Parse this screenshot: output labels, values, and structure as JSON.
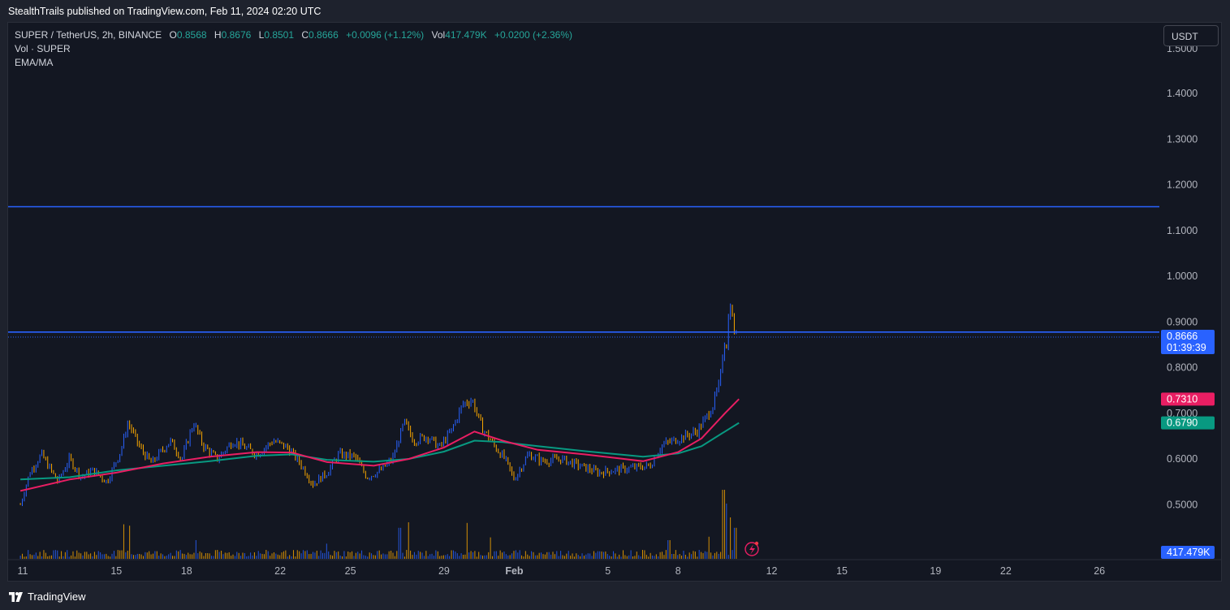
{
  "header": {
    "publish_text": "StealthTrails published on TradingView.com, Feb 11, 2024 02:20 UTC"
  },
  "legend": {
    "symbol": "SUPER / TetherUS, 2h, BINANCE",
    "o_label": "O",
    "o_value": "0.8568",
    "h_label": "H",
    "h_value": "0.8676",
    "l_label": "L",
    "l_value": "0.8501",
    "c_label": "C",
    "c_value": "0.8666",
    "change": "+0.0096 (+1.12%)",
    "vol_label": "Vol",
    "vol_value": "417.479K",
    "vol_change": "+0.0200 (+2.36%)",
    "vol_indicator": "Vol · SUPER",
    "ema_indicator": "EMA/MA"
  },
  "currency_button": "USDT",
  "footer": {
    "brand": "TradingView"
  },
  "colors": {
    "up": "#2962ff",
    "down": "#f7a600",
    "ema_fast": "#e91e63",
    "ema_slow": "#089981",
    "hline": "#2962ff",
    "label_last": "#2962ff"
  },
  "chart_data": {
    "type": "candlestick",
    "symbol": "SUPER / TetherUS",
    "interval": "2h",
    "exchange": "BINANCE",
    "y_axis_ticks": [
      "1.4000",
      "1.3000",
      "1.2000",
      "1.1000",
      "1.0000",
      "0.9000",
      "0.8000",
      "0.7000",
      "0.6000",
      "0.5000"
    ],
    "y_axis_top_partial": "1.5000",
    "ylim": [
      0.43,
      1.52
    ],
    "x_axis_ticks": [
      {
        "label": "11",
        "day": 11
      },
      {
        "label": "15",
        "day": 15
      },
      {
        "label": "18",
        "day": 18
      },
      {
        "label": "22",
        "day": 22
      },
      {
        "label": "25",
        "day": 25
      },
      {
        "label": "29",
        "day": 29
      },
      {
        "label": "Feb",
        "day": 32
      },
      {
        "label": "5",
        "day": 36
      },
      {
        "label": "8",
        "day": 39
      },
      {
        "label": "12",
        "day": 43
      },
      {
        "label": "15",
        "day": 46
      },
      {
        "label": "19",
        "day": 50
      },
      {
        "label": "22",
        "day": 53
      },
      {
        "label": "26",
        "day": 57
      }
    ],
    "horizontal_lines": [
      1.152,
      0.8776
    ],
    "last_price": {
      "value": "0.8666",
      "countdown": "01:39:39"
    },
    "ema_labels": {
      "fast": "0.7310",
      "slow": "0.6790"
    },
    "volume_last": "417.479K",
    "price_path": [
      {
        "day": 10.9,
        "price": 0.5
      },
      {
        "day": 11.3,
        "price": 0.57
      },
      {
        "day": 11.8,
        "price": 0.61
      },
      {
        "day": 12.5,
        "price": 0.55
      },
      {
        "day": 13.0,
        "price": 0.6
      },
      {
        "day": 13.5,
        "price": 0.56
      },
      {
        "day": 14.0,
        "price": 0.575
      },
      {
        "day": 14.6,
        "price": 0.55
      },
      {
        "day": 15.2,
        "price": 0.62
      },
      {
        "day": 15.5,
        "price": 0.68
      },
      {
        "day": 16.0,
        "price": 0.625
      },
      {
        "day": 16.5,
        "price": 0.59
      },
      {
        "day": 17.3,
        "price": 0.64
      },
      {
        "day": 17.8,
        "price": 0.6
      },
      {
        "day": 18.3,
        "price": 0.68
      },
      {
        "day": 18.7,
        "price": 0.63
      },
      {
        "day": 19.3,
        "price": 0.6
      },
      {
        "day": 20.0,
        "price": 0.64
      },
      {
        "day": 21.0,
        "price": 0.61
      },
      {
        "day": 21.7,
        "price": 0.64
      },
      {
        "day": 22.3,
        "price": 0.625
      },
      {
        "day": 22.8,
        "price": 0.595
      },
      {
        "day": 23.4,
        "price": 0.545
      },
      {
        "day": 24.0,
        "price": 0.57
      },
      {
        "day": 24.5,
        "price": 0.61
      },
      {
        "day": 25.2,
        "price": 0.605
      },
      {
        "day": 25.7,
        "price": 0.56
      },
      {
        "day": 26.3,
        "price": 0.575
      },
      {
        "day": 26.8,
        "price": 0.6
      },
      {
        "day": 27.3,
        "price": 0.68
      },
      {
        "day": 27.7,
        "price": 0.64
      },
      {
        "day": 28.3,
        "price": 0.65
      },
      {
        "day": 28.8,
        "price": 0.625
      },
      {
        "day": 29.3,
        "price": 0.66
      },
      {
        "day": 29.8,
        "price": 0.72
      },
      {
        "day": 30.2,
        "price": 0.73
      },
      {
        "day": 30.6,
        "price": 0.67
      },
      {
        "day": 31.2,
        "price": 0.625
      },
      {
        "day": 31.6,
        "price": 0.6
      },
      {
        "day": 32.0,
        "price": 0.555
      },
      {
        "day": 32.6,
        "price": 0.61
      },
      {
        "day": 33.2,
        "price": 0.595
      },
      {
        "day": 34.0,
        "price": 0.6
      },
      {
        "day": 34.8,
        "price": 0.585
      },
      {
        "day": 35.6,
        "price": 0.57
      },
      {
        "day": 36.2,
        "price": 0.575
      },
      {
        "day": 37.0,
        "price": 0.58
      },
      {
        "day": 37.8,
        "price": 0.585
      },
      {
        "day": 38.3,
        "price": 0.63
      },
      {
        "day": 38.8,
        "price": 0.64
      },
      {
        "day": 39.3,
        "price": 0.65
      },
      {
        "day": 39.8,
        "price": 0.66
      },
      {
        "day": 40.2,
        "price": 0.69
      },
      {
        "day": 40.5,
        "price": 0.72
      },
      {
        "day": 40.8,
        "price": 0.77
      },
      {
        "day": 40.95,
        "price": 0.86
      },
      {
        "day": 41.1,
        "price": 0.85
      },
      {
        "day": 41.2,
        "price": 0.96
      },
      {
        "day": 41.35,
        "price": 0.89
      },
      {
        "day": 41.5,
        "price": 0.8666
      }
    ],
    "ema_fast_path": [
      {
        "day": 10.9,
        "price": 0.53
      },
      {
        "day": 13.0,
        "price": 0.555
      },
      {
        "day": 15.0,
        "price": 0.57
      },
      {
        "day": 17.0,
        "price": 0.59
      },
      {
        "day": 19.0,
        "price": 0.605
      },
      {
        "day": 21.0,
        "price": 0.615
      },
      {
        "day": 22.5,
        "price": 0.614
      },
      {
        "day": 24.0,
        "price": 0.593
      },
      {
        "day": 26.0,
        "price": 0.585
      },
      {
        "day": 27.5,
        "price": 0.6
      },
      {
        "day": 29.0,
        "price": 0.625
      },
      {
        "day": 30.3,
        "price": 0.66
      },
      {
        "day": 31.5,
        "price": 0.64
      },
      {
        "day": 33.0,
        "price": 0.62
      },
      {
        "day": 35.0,
        "price": 0.61
      },
      {
        "day": 37.5,
        "price": 0.595
      },
      {
        "day": 39.0,
        "price": 0.615
      },
      {
        "day": 40.0,
        "price": 0.645
      },
      {
        "day": 41.0,
        "price": 0.7
      },
      {
        "day": 41.6,
        "price": 0.731
      }
    ],
    "ema_slow_path": [
      {
        "day": 10.9,
        "price": 0.555
      },
      {
        "day": 13.0,
        "price": 0.56
      },
      {
        "day": 15.0,
        "price": 0.575
      },
      {
        "day": 17.0,
        "price": 0.585
      },
      {
        "day": 19.0,
        "price": 0.595
      },
      {
        "day": 21.0,
        "price": 0.607
      },
      {
        "day": 22.5,
        "price": 0.61
      },
      {
        "day": 24.0,
        "price": 0.598
      },
      {
        "day": 26.0,
        "price": 0.594
      },
      {
        "day": 27.5,
        "price": 0.6
      },
      {
        "day": 29.0,
        "price": 0.616
      },
      {
        "day": 30.3,
        "price": 0.64
      },
      {
        "day": 31.5,
        "price": 0.637
      },
      {
        "day": 33.0,
        "price": 0.628
      },
      {
        "day": 35.0,
        "price": 0.617
      },
      {
        "day": 37.5,
        "price": 0.605
      },
      {
        "day": 39.0,
        "price": 0.612
      },
      {
        "day": 40.0,
        "price": 0.628
      },
      {
        "day": 41.0,
        "price": 0.66
      },
      {
        "day": 41.6,
        "price": 0.679
      }
    ],
    "volume_spikes": [
      {
        "day": 15.3,
        "v": 0.5
      },
      {
        "day": 15.6,
        "v": 0.48
      },
      {
        "day": 18.4,
        "v": 0.27
      },
      {
        "day": 24.0,
        "v": 0.22
      },
      {
        "day": 27.1,
        "v": 0.45
      },
      {
        "day": 27.5,
        "v": 0.53
      },
      {
        "day": 30.0,
        "v": 0.52
      },
      {
        "day": 31.0,
        "v": 0.31
      },
      {
        "day": 38.6,
        "v": 0.27
      },
      {
        "day": 40.3,
        "v": 0.32
      },
      {
        "day": 40.95,
        "v": 1.0
      },
      {
        "day": 41.1,
        "v": 0.8
      },
      {
        "day": 41.25,
        "v": 0.6
      },
      {
        "day": 41.45,
        "v": 0.45
      }
    ]
  }
}
